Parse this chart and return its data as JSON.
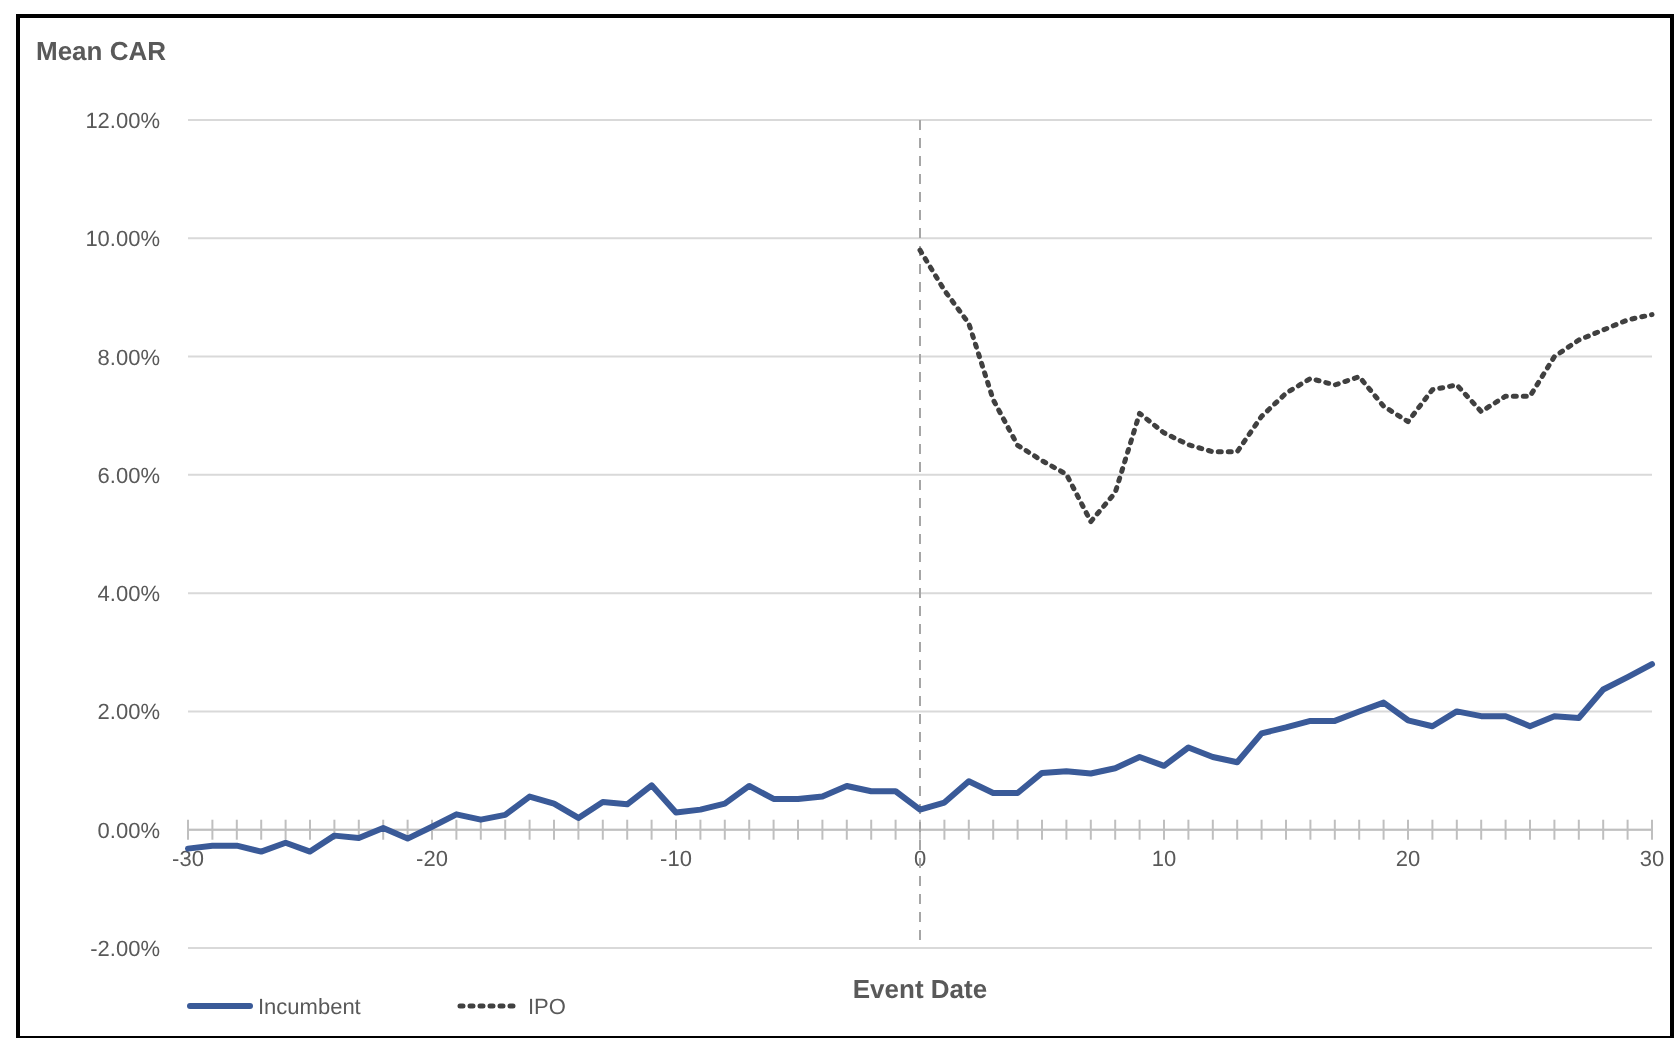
{
  "chart_data": {
    "type": "line",
    "ylabel": "Mean CAR",
    "xlabel": "Event Date",
    "xlim": [
      -30,
      30
    ],
    "ylim": [
      -2,
      12
    ],
    "xticks": [
      -30,
      {
        "value": -29,
        "label": null
      },
      {
        "value": -28,
        "label": null
      },
      {
        "value": -27,
        "label": null
      },
      {
        "value": -26,
        "label": null
      },
      {
        "value": -25,
        "label": null
      },
      {
        "value": -24,
        "label": null
      },
      {
        "value": -23,
        "label": null
      },
      {
        "value": -22,
        "label": null
      },
      {
        "value": -21,
        "label": null
      },
      -20,
      {
        "value": -19,
        "label": null
      },
      {
        "value": -18,
        "label": null
      },
      {
        "value": -17,
        "label": null
      },
      {
        "value": -16,
        "label": null
      },
      {
        "value": -15,
        "label": null
      },
      {
        "value": -14,
        "label": null
      },
      {
        "value": -13,
        "label": null
      },
      {
        "value": -12,
        "label": null
      },
      {
        "value": -11,
        "label": null
      },
      -10,
      {
        "value": -9,
        "label": null
      },
      {
        "value": -8,
        "label": null
      },
      {
        "value": -7,
        "label": null
      },
      {
        "value": -6,
        "label": null
      },
      {
        "value": -5,
        "label": null
      },
      {
        "value": -4,
        "label": null
      },
      {
        "value": -3,
        "label": null
      },
      {
        "value": -2,
        "label": null
      },
      {
        "value": -1,
        "label": null
      },
      0,
      {
        "value": 1,
        "label": null
      },
      {
        "value": 2,
        "label": null
      },
      {
        "value": 3,
        "label": null
      },
      {
        "value": 4,
        "label": null
      },
      {
        "value": 5,
        "label": null
      },
      {
        "value": 6,
        "label": null
      },
      {
        "value": 7,
        "label": null
      },
      {
        "value": 8,
        "label": null
      },
      {
        "value": 9,
        "label": null
      },
      10,
      {
        "value": 11,
        "label": null
      },
      {
        "value": 12,
        "label": null
      },
      {
        "value": 13,
        "label": null
      },
      {
        "value": 14,
        "label": null
      },
      {
        "value": 15,
        "label": null
      },
      {
        "value": 16,
        "label": null
      },
      {
        "value": 17,
        "label": null
      },
      {
        "value": 18,
        "label": null
      },
      {
        "value": 19,
        "label": null
      },
      20,
      {
        "value": 21,
        "label": null
      },
      {
        "value": 22,
        "label": null
      },
      {
        "value": 23,
        "label": null
      },
      {
        "value": 24,
        "label": null
      },
      {
        "value": 25,
        "label": null
      },
      {
        "value": 26,
        "label": null
      },
      {
        "value": 27,
        "label": null
      },
      {
        "value": 28,
        "label": null
      },
      {
        "value": 29,
        "label": null
      },
      30
    ],
    "yticks": [
      {
        "value": -2,
        "label": "-2.00%"
      },
      {
        "value": 0,
        "label": "0.00%"
      },
      {
        "value": 2,
        "label": "2.00%"
      },
      {
        "value": 4,
        "label": "4.00%"
      },
      {
        "value": 6,
        "label": "6.00%"
      },
      {
        "value": 8,
        "label": "8.00%"
      },
      {
        "value": 10,
        "label": "10.00%"
      },
      {
        "value": 12,
        "label": "12.00%"
      }
    ],
    "grid": "y",
    "legend": "bottom left",
    "marker": "none",
    "ref_lines": [
      {
        "axis": "x",
        "value": 0,
        "color": "#a6a6a6",
        "line_style": "dashed"
      }
    ],
    "series": [
      {
        "name": "Incumbent",
        "color": "#3a5a98",
        "line_style": "solid",
        "x": [
          -30,
          -29,
          -28,
          -27,
          -26,
          -25,
          -24,
          -23,
          -22,
          -21,
          -20,
          -19,
          -18,
          -17,
          -16,
          -15,
          -14,
          -13,
          -12,
          -11,
          -10,
          -9,
          -8,
          -7,
          -6,
          -5,
          -4,
          -3,
          -2,
          -1,
          0,
          1,
          2,
          3,
          4,
          5,
          6,
          7,
          8,
          9,
          10,
          11,
          12,
          13,
          14,
          15,
          16,
          17,
          18,
          19,
          20,
          21,
          22,
          23,
          24,
          25,
          26,
          27,
          28,
          29,
          30
        ],
        "values": [
          -0.32,
          -0.27,
          -0.27,
          -0.37,
          -0.22,
          -0.37,
          -0.1,
          -0.14,
          0.03,
          -0.15,
          0.05,
          0.26,
          0.17,
          0.25,
          0.56,
          0.44,
          0.2,
          0.47,
          0.43,
          0.75,
          0.29,
          0.34,
          0.44,
          0.74,
          0.52,
          0.52,
          0.56,
          0.74,
          0.65,
          0.65,
          0.34,
          0.46,
          0.82,
          0.62,
          0.62,
          0.96,
          0.99,
          0.95,
          1.04,
          1.23,
          1.08,
          1.39,
          1.23,
          1.14,
          1.63,
          1.73,
          1.84,
          1.84,
          2.0,
          2.15,
          1.85,
          1.75,
          2.0,
          1.92,
          1.92,
          1.75,
          1.92,
          1.89,
          2.37,
          2.58,
          2.8
        ]
      },
      {
        "name": "IPO",
        "color": "#404040",
        "line_style": "dotted",
        "x": [
          0,
          1,
          2,
          3,
          4,
          5,
          6,
          7,
          8,
          9,
          10,
          11,
          12,
          13,
          14,
          15,
          16,
          17,
          18,
          19,
          20,
          21,
          22,
          23,
          24,
          25,
          26,
          27,
          28,
          29,
          30
        ],
        "values": [
          9.8,
          9.12,
          8.56,
          7.27,
          6.5,
          6.24,
          6.01,
          5.21,
          5.7,
          7.04,
          6.71,
          6.51,
          6.39,
          6.39,
          6.99,
          7.38,
          7.63,
          7.52,
          7.66,
          7.16,
          6.9,
          7.44,
          7.52,
          7.07,
          7.33,
          7.33,
          8.0,
          8.28,
          8.45,
          8.62,
          8.71
        ]
      }
    ]
  }
}
